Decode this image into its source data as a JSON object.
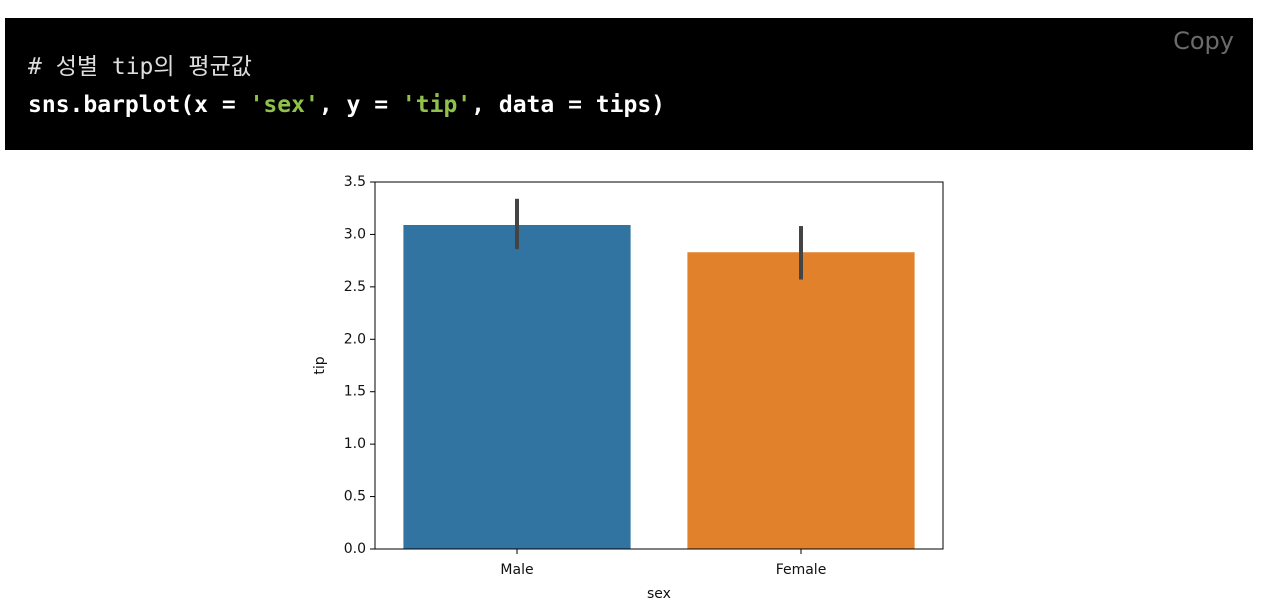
{
  "code": {
    "copy_label": "Copy",
    "comment": "# 성별 tip의 평균값",
    "tokens": [
      "sns.barplot(x = ",
      "'sex'",
      ", y = ",
      "'tip'",
      ", data = tips)"
    ]
  },
  "chart_data": {
    "type": "bar",
    "categories": [
      "Male",
      "Female"
    ],
    "values": [
      3.09,
      2.83
    ],
    "error_low": [
      2.86,
      2.57
    ],
    "error_high": [
      3.34,
      3.08
    ],
    "colors": [
      "#3274a1",
      "#e1812c"
    ],
    "error_color": "#444444",
    "xlabel": "sex",
    "ylabel": "tip",
    "ylim": [
      0,
      3.5
    ],
    "yticks": [
      {
        "value": 0,
        "label": "0.0"
      },
      {
        "value": 0.5,
        "label": "0.5"
      },
      {
        "value": 1,
        "label": "1.0"
      },
      {
        "value": 1.5,
        "label": "1.5"
      },
      {
        "value": 2,
        "label": "2.0"
      },
      {
        "value": 2.5,
        "label": "2.5"
      },
      {
        "value": 3,
        "label": "3.0"
      },
      {
        "value": 3.5,
        "label": "3.5"
      }
    ],
    "grid": false
  }
}
